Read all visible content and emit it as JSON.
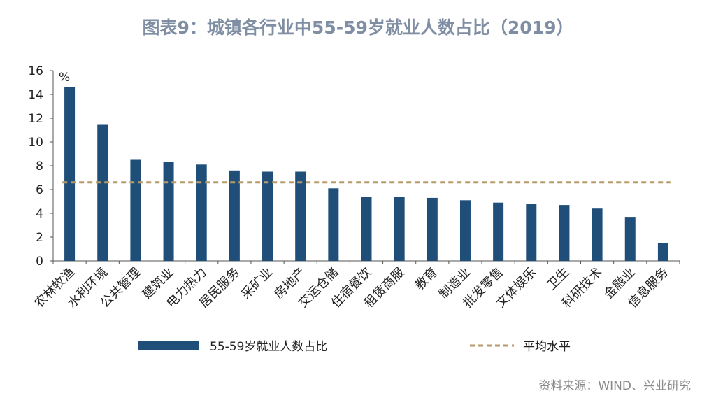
{
  "chart_data": {
    "type": "bar",
    "title": "图表9：城镇各行业中55-59岁就业人数占比（2019）",
    "unit_label": "%",
    "ylim": [
      0,
      16
    ],
    "yticks": [
      0,
      2,
      4,
      6,
      8,
      10,
      12,
      14,
      16
    ],
    "categories": [
      "农林牧渔",
      "水利环境",
      "公共管理",
      "建筑业",
      "电力热力",
      "居民服务",
      "采矿业",
      "房地产",
      "交运仓储",
      "住宿餐饮",
      "租赁商服",
      "教育",
      "制造业",
      "批发零售",
      "文体娱乐",
      "卫生",
      "科研技术",
      "金融业",
      "信息服务"
    ],
    "series": [
      {
        "name": "55-59岁就业人数占比",
        "type": "bar",
        "color": "#1f4e79",
        "values": [
          14.6,
          11.5,
          8.5,
          8.3,
          8.1,
          7.6,
          7.5,
          7.5,
          6.1,
          5.4,
          5.4,
          5.3,
          5.1,
          4.9,
          4.8,
          4.7,
          4.4,
          3.7,
          1.5
        ]
      },
      {
        "name": "平均水平",
        "type": "line",
        "style": "dashed",
        "color": "#b59b6a",
        "value": 6.6
      }
    ],
    "legend_position": "bottom",
    "grid": false,
    "source": "资料来源：WIND、兴业研究"
  }
}
